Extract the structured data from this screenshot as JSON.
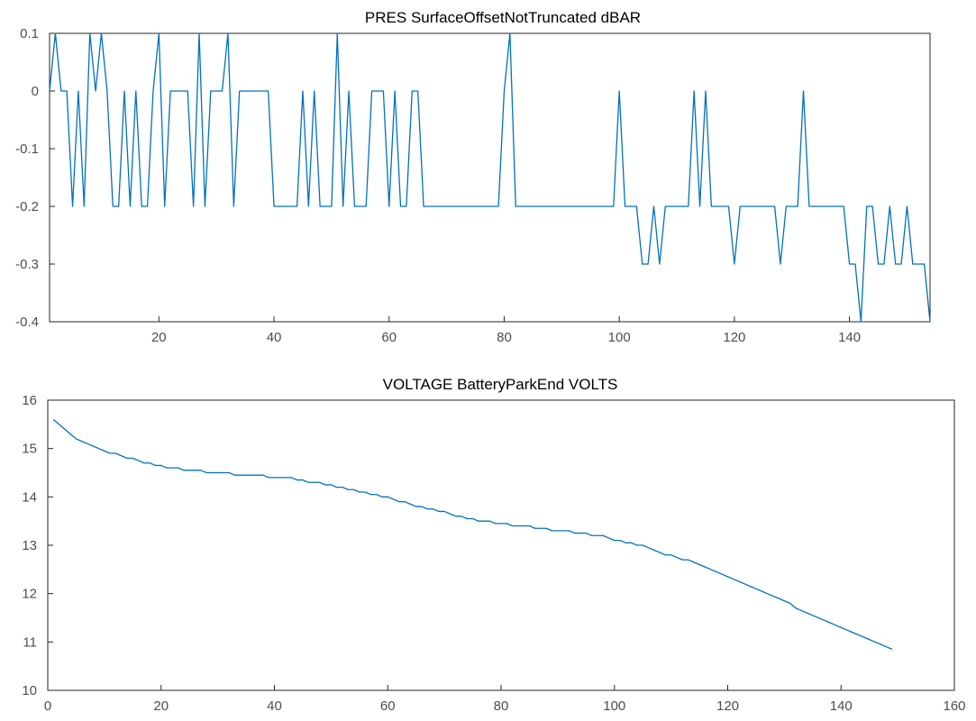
{
  "chart_data": [
    {
      "type": "line",
      "title": "PRES SurfaceOffsetNotTruncated dBAR",
      "xlabel": "",
      "ylabel": "",
      "xlim": [
        1,
        154
      ],
      "ylim": [
        -0.4,
        0.1
      ],
      "xticks": [
        20,
        40,
        60,
        80,
        100,
        120,
        140
      ],
      "yticks": [
        -0.4,
        -0.3,
        -0.2,
        -0.1,
        0,
        0.1
      ],
      "xtick_labels": [
        "20",
        "40",
        "60",
        "80",
        "100",
        "120",
        "140"
      ],
      "ytick_labels": [
        "-0.4",
        "-0.3",
        "-0.2",
        "-0.1",
        "0",
        "0.1"
      ],
      "grid": true,
      "color": "#0072bd",
      "x_start": 1,
      "values": [
        0,
        0.1,
        0,
        0,
        -0.2,
        0,
        -0.2,
        0.1,
        0,
        0.1,
        0,
        -0.2,
        -0.2,
        0,
        -0.2,
        0,
        -0.2,
        -0.2,
        0,
        0.1,
        -0.2,
        0,
        0,
        0,
        0,
        -0.2,
        0.1,
        -0.2,
        0,
        0,
        0,
        0.1,
        -0.2,
        0,
        0,
        0,
        0,
        0,
        0,
        -0.2,
        -0.2,
        -0.2,
        -0.2,
        -0.2,
        0,
        -0.2,
        0,
        -0.2,
        -0.2,
        -0.2,
        0.1,
        -0.2,
        0,
        -0.2,
        -0.2,
        -0.2,
        0,
        0,
        0,
        -0.2,
        0,
        -0.2,
        -0.2,
        0,
        0,
        -0.2,
        -0.2,
        -0.2,
        -0.2,
        -0.2,
        -0.2,
        -0.2,
        -0.2,
        -0.2,
        -0.2,
        -0.2,
        -0.2,
        -0.2,
        -0.2,
        0,
        0.1,
        -0.2,
        -0.2,
        -0.2,
        -0.2,
        -0.2,
        -0.2,
        -0.2,
        -0.2,
        -0.2,
        -0.2,
        -0.2,
        -0.2,
        -0.2,
        -0.2,
        -0.2,
        -0.2,
        -0.2,
        -0.2,
        0,
        -0.2,
        -0.2,
        -0.2,
        -0.3,
        -0.3,
        -0.2,
        -0.3,
        -0.2,
        -0.2,
        -0.2,
        -0.2,
        -0.2,
        0,
        -0.2,
        0,
        -0.2,
        -0.2,
        -0.2,
        -0.2,
        -0.3,
        -0.2,
        -0.2,
        -0.2,
        -0.2,
        -0.2,
        -0.2,
        -0.2,
        -0.3,
        -0.2,
        -0.2,
        -0.2,
        0,
        -0.2,
        -0.2,
        -0.2,
        -0.2,
        -0.2,
        -0.2,
        -0.2,
        -0.3,
        -0.3,
        -0.4,
        -0.2,
        -0.2,
        -0.3,
        -0.3,
        -0.2,
        -0.3,
        -0.3,
        -0.2,
        -0.3,
        -0.3,
        -0.3,
        -0.4
      ]
    },
    {
      "type": "line",
      "title": "VOLTAGE BatteryParkEnd VOLTS",
      "xlabel": "",
      "ylabel": "",
      "xlim": [
        0,
        160
      ],
      "ylim": [
        10,
        16
      ],
      "xticks": [
        0,
        20,
        40,
        60,
        80,
        100,
        120,
        140,
        160
      ],
      "yticks": [
        10,
        11,
        12,
        13,
        14,
        15,
        16
      ],
      "xtick_labels": [
        "0",
        "20",
        "40",
        "60",
        "80",
        "100",
        "120",
        "140",
        "160"
      ],
      "ytick_labels": [
        "10",
        "11",
        "12",
        "13",
        "14",
        "15",
        "16"
      ],
      "grid": true,
      "color": "#0072bd",
      "x_start": 1,
      "values": [
        15.6,
        15.5,
        15.4,
        15.3,
        15.2,
        15.15,
        15.1,
        15.05,
        15.0,
        14.95,
        14.9,
        14.9,
        14.85,
        14.8,
        14.8,
        14.75,
        14.7,
        14.7,
        14.65,
        14.65,
        14.6,
        14.6,
        14.6,
        14.55,
        14.55,
        14.55,
        14.55,
        14.5,
        14.5,
        14.5,
        14.5,
        14.5,
        14.45,
        14.45,
        14.45,
        14.45,
        14.45,
        14.45,
        14.4,
        14.4,
        14.4,
        14.4,
        14.4,
        14.35,
        14.35,
        14.3,
        14.3,
        14.3,
        14.25,
        14.25,
        14.2,
        14.2,
        14.15,
        14.15,
        14.1,
        14.1,
        14.05,
        14.05,
        14.0,
        14.0,
        13.95,
        13.9,
        13.9,
        13.85,
        13.8,
        13.8,
        13.75,
        13.75,
        13.7,
        13.7,
        13.65,
        13.6,
        13.6,
        13.55,
        13.55,
        13.5,
        13.5,
        13.5,
        13.45,
        13.45,
        13.45,
        13.4,
        13.4,
        13.4,
        13.4,
        13.35,
        13.35,
        13.35,
        13.3,
        13.3,
        13.3,
        13.3,
        13.25,
        13.25,
        13.25,
        13.2,
        13.2,
        13.2,
        13.15,
        13.1,
        13.1,
        13.05,
        13.05,
        13.0,
        13.0,
        12.95,
        12.9,
        12.85,
        12.8,
        12.8,
        12.75,
        12.7,
        12.7,
        12.65,
        12.6,
        12.55,
        12.5,
        12.45,
        12.4,
        12.35,
        12.3,
        12.25,
        12.2,
        12.15,
        12.1,
        12.05,
        12.0,
        11.95,
        11.9,
        11.85,
        11.8,
        11.7,
        11.65,
        11.6,
        11.55,
        11.5,
        11.45,
        11.4,
        11.35,
        11.3,
        11.25,
        11.2,
        11.15,
        11.1,
        11.05,
        11.0,
        10.95,
        10.9,
        10.85
      ]
    }
  ]
}
